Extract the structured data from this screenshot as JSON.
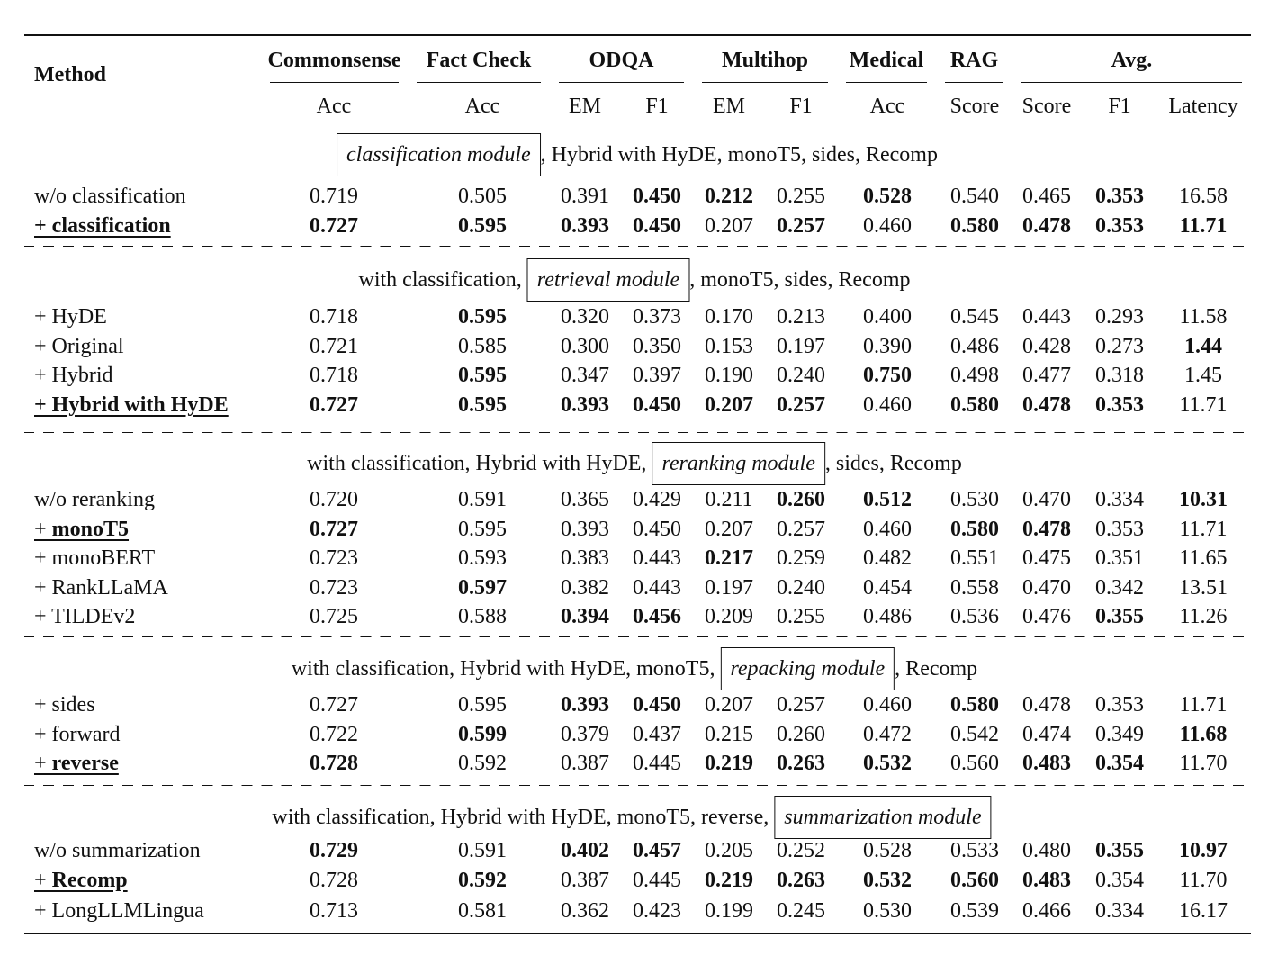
{
  "table": {
    "header": {
      "method": "Method",
      "groups": [
        {
          "label": "Commonsense",
          "span": 1
        },
        {
          "label": "Fact Check",
          "span": 1
        },
        {
          "label": "ODQA",
          "span": 2
        },
        {
          "label": "Multihop",
          "span": 2
        },
        {
          "label": "Medical",
          "span": 1
        },
        {
          "label": "RAG",
          "span": 1
        },
        {
          "label": "Avg.",
          "span": 3
        }
      ],
      "subheaders": [
        "Acc",
        "Acc",
        "EM",
        "F1",
        "EM",
        "F1",
        "Acc",
        "Score",
        "Score",
        "F1",
        "Latency"
      ]
    },
    "sections": [
      {
        "caption": {
          "boxed": "classification module",
          "after": ", Hybrid with HyDE, monoT5, sides, Recomp"
        },
        "rows": [
          {
            "method": "w/o classification",
            "values": [
              "0.719",
              "0.505",
              "0.391",
              "0.450",
              "0.212",
              "0.255",
              "0.528",
              "0.540",
              "0.465",
              "0.353",
              "16.58"
            ],
            "bold": [
              3,
              4,
              6,
              9
            ]
          },
          {
            "method": "+ classification",
            "selected": true,
            "values": [
              "0.727",
              "0.595",
              "0.393",
              "0.450",
              "0.207",
              "0.257",
              "0.460",
              "0.580",
              "0.478",
              "0.353",
              "11.71"
            ],
            "bold": [
              0,
              1,
              2,
              3,
              5,
              7,
              8,
              9,
              10
            ]
          }
        ]
      },
      {
        "caption": {
          "before": "with classification,",
          "boxed": "retrieval module",
          "after": ", monoT5, sides, Recomp"
        },
        "rows": [
          {
            "method": "+ HyDE",
            "values": [
              "0.718",
              "0.595",
              "0.320",
              "0.373",
              "0.170",
              "0.213",
              "0.400",
              "0.545",
              "0.443",
              "0.293",
              "11.58"
            ],
            "bold": [
              1
            ]
          },
          {
            "method": "+ Original",
            "values": [
              "0.721",
              "0.585",
              "0.300",
              "0.350",
              "0.153",
              "0.197",
              "0.390",
              "0.486",
              "0.428",
              "0.273",
              "1.44"
            ],
            "bold": [
              10
            ]
          },
          {
            "method": "+ Hybrid",
            "values": [
              "0.718",
              "0.595",
              "0.347",
              "0.397",
              "0.190",
              "0.240",
              "0.750",
              "0.498",
              "0.477",
              "0.318",
              "1.45"
            ],
            "bold": [
              1,
              6
            ]
          },
          {
            "method": "+ Hybrid with HyDE",
            "selected": true,
            "values": [
              "0.727",
              "0.595",
              "0.393",
              "0.450",
              "0.207",
              "0.257",
              "0.460",
              "0.580",
              "0.478",
              "0.353",
              "11.71"
            ],
            "bold": [
              0,
              1,
              2,
              3,
              4,
              5,
              7,
              8,
              9
            ]
          }
        ]
      },
      {
        "caption": {
          "before": "with classification, Hybrid with HyDE,",
          "boxed": "reranking module",
          "after": ", sides, Recomp"
        },
        "rows": [
          {
            "method": "w/o reranking",
            "values": [
              "0.720",
              "0.591",
              "0.365",
              "0.429",
              "0.211",
              "0.260",
              "0.512",
              "0.530",
              "0.470",
              "0.334",
              "10.31"
            ],
            "bold": [
              5,
              6,
              10
            ]
          },
          {
            "method": "+ monoT5",
            "selected": true,
            "values": [
              "0.727",
              "0.595",
              "0.393",
              "0.450",
              "0.207",
              "0.257",
              "0.460",
              "0.580",
              "0.478",
              "0.353",
              "11.71"
            ],
            "bold": [
              0,
              7,
              8
            ]
          },
          {
            "method": "+ monoBERT",
            "values": [
              "0.723",
              "0.593",
              "0.383",
              "0.443",
              "0.217",
              "0.259",
              "0.482",
              "0.551",
              "0.475",
              "0.351",
              "11.65"
            ],
            "bold": [
              4
            ]
          },
          {
            "method": "+ RankLLaMA",
            "values": [
              "0.723",
              "0.597",
              "0.382",
              "0.443",
              "0.197",
              "0.240",
              "0.454",
              "0.558",
              "0.470",
              "0.342",
              "13.51"
            ],
            "bold": [
              1
            ]
          },
          {
            "method": "+ TILDEv2",
            "values": [
              "0.725",
              "0.588",
              "0.394",
              "0.456",
              "0.209",
              "0.255",
              "0.486",
              "0.536",
              "0.476",
              "0.355",
              "11.26"
            ],
            "bold": [
              2,
              3,
              9
            ]
          }
        ]
      },
      {
        "caption": {
          "before": "with classification, Hybrid with HyDE, monoT5,",
          "boxed": "repacking module",
          "after": ", Recomp"
        },
        "rows": [
          {
            "method": "+ sides",
            "values": [
              "0.727",
              "0.595",
              "0.393",
              "0.450",
              "0.207",
              "0.257",
              "0.460",
              "0.580",
              "0.478",
              "0.353",
              "11.71"
            ],
            "bold": [
              2,
              3,
              7
            ]
          },
          {
            "method": "+ forward",
            "values": [
              "0.722",
              "0.599",
              "0.379",
              "0.437",
              "0.215",
              "0.260",
              "0.472",
              "0.542",
              "0.474",
              "0.349",
              "11.68"
            ],
            "bold": [
              1,
              10
            ]
          },
          {
            "method": "+ reverse",
            "selected": true,
            "values": [
              "0.728",
              "0.592",
              "0.387",
              "0.445",
              "0.219",
              "0.263",
              "0.532",
              "0.560",
              "0.483",
              "0.354",
              "11.70"
            ],
            "bold": [
              0,
              4,
              5,
              6,
              8,
              9
            ]
          }
        ]
      },
      {
        "caption": {
          "before": "with classification, Hybrid with HyDE, monoT5, reverse,",
          "boxed": "summarization module"
        },
        "rows": [
          {
            "method": "w/o summarization",
            "values": [
              "0.729",
              "0.591",
              "0.402",
              "0.457",
              "0.205",
              "0.252",
              "0.528",
              "0.533",
              "0.480",
              "0.355",
              "10.97"
            ],
            "bold": [
              0,
              2,
              3,
              9,
              10
            ]
          },
          {
            "method": "+ Recomp",
            "selected": true,
            "values": [
              "0.728",
              "0.592",
              "0.387",
              "0.445",
              "0.219",
              "0.263",
              "0.532",
              "0.560",
              "0.483",
              "0.354",
              "11.70"
            ],
            "bold": [
              1,
              4,
              5,
              6,
              7,
              8
            ]
          },
          {
            "method": "+ LongLLMLingua",
            "values": [
              "0.713",
              "0.581",
              "0.362",
              "0.423",
              "0.199",
              "0.245",
              "0.530",
              "0.539",
              "0.466",
              "0.334",
              "16.17"
            ],
            "bold": []
          }
        ]
      }
    ]
  }
}
